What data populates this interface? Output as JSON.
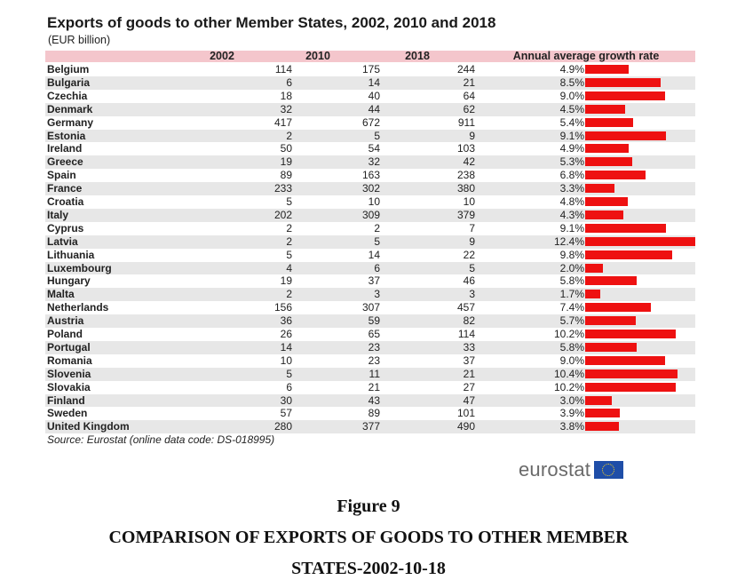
{
  "chart_data": {
    "type": "table",
    "title": "Exports of goods to other Member States, 2002, 2010 and 2018",
    "subtitle": "(EUR billion)",
    "columns": [
      "",
      "2002",
      "2010",
      "2018",
      "Annual average growth rate"
    ],
    "rows": [
      {
        "country": "Belgium",
        "v2002": 114,
        "v2010": 175,
        "v2018": 244,
        "growth_label": "4.9%",
        "growth": 4.9
      },
      {
        "country": "Bulgaria",
        "v2002": 6,
        "v2010": 14,
        "v2018": 21,
        "growth_label": "8.5%",
        "growth": 8.5
      },
      {
        "country": "Czechia",
        "v2002": 18,
        "v2010": 40,
        "v2018": 64,
        "growth_label": "9.0%",
        "growth": 9.0
      },
      {
        "country": "Denmark",
        "v2002": 32,
        "v2010": 44,
        "v2018": 62,
        "growth_label": "4.5%",
        "growth": 4.5
      },
      {
        "country": "Germany",
        "v2002": 417,
        "v2010": 672,
        "v2018": 911,
        "growth_label": "5.4%",
        "growth": 5.4
      },
      {
        "country": "Estonia",
        "v2002": 2,
        "v2010": 5,
        "v2018": 9,
        "growth_label": "9.1%",
        "growth": 9.1
      },
      {
        "country": "Ireland",
        "v2002": 50,
        "v2010": 54,
        "v2018": 103,
        "growth_label": "4.9%",
        "growth": 4.9
      },
      {
        "country": "Greece",
        "v2002": 19,
        "v2010": 32,
        "v2018": 42,
        "growth_label": "5.3%",
        "growth": 5.3
      },
      {
        "country": "Spain",
        "v2002": 89,
        "v2010": 163,
        "v2018": 238,
        "growth_label": "6.8%",
        "growth": 6.8
      },
      {
        "country": "France",
        "v2002": 233,
        "v2010": 302,
        "v2018": 380,
        "growth_label": "3.3%",
        "growth": 3.3
      },
      {
        "country": "Croatia",
        "v2002": 5,
        "v2010": 10,
        "v2018": 10,
        "growth_label": "4.8%",
        "growth": 4.8
      },
      {
        "country": "Italy",
        "v2002": 202,
        "v2010": 309,
        "v2018": 379,
        "growth_label": "4.3%",
        "growth": 4.3
      },
      {
        "country": "Cyprus",
        "v2002": 2,
        "v2010": 2,
        "v2018": 7,
        "growth_label": "9.1%",
        "growth": 9.1
      },
      {
        "country": "Latvia",
        "v2002": 2,
        "v2010": 5,
        "v2018": 9,
        "growth_label": "12.4%",
        "growth": 12.4
      },
      {
        "country": "Lithuania",
        "v2002": 5,
        "v2010": 14,
        "v2018": 22,
        "growth_label": "9.8%",
        "growth": 9.8
      },
      {
        "country": "Luxembourg",
        "v2002": 4,
        "v2010": 6,
        "v2018": 5,
        "growth_label": "2.0%",
        "growth": 2.0
      },
      {
        "country": "Hungary",
        "v2002": 19,
        "v2010": 37,
        "v2018": 46,
        "growth_label": "5.8%",
        "growth": 5.8
      },
      {
        "country": "Malta",
        "v2002": 2,
        "v2010": 3,
        "v2018": 3,
        "growth_label": "1.7%",
        "growth": 1.7
      },
      {
        "country": "Netherlands",
        "v2002": 156,
        "v2010": 307,
        "v2018": 457,
        "growth_label": "7.4%",
        "growth": 7.4
      },
      {
        "country": "Austria",
        "v2002": 36,
        "v2010": 59,
        "v2018": 82,
        "growth_label": "5.7%",
        "growth": 5.7
      },
      {
        "country": "Poland",
        "v2002": 26,
        "v2010": 65,
        "v2018": 114,
        "growth_label": "10.2%",
        "growth": 10.2
      },
      {
        "country": "Portugal",
        "v2002": 14,
        "v2010": 23,
        "v2018": 33,
        "growth_label": "5.8%",
        "growth": 5.8
      },
      {
        "country": "Romania",
        "v2002": 10,
        "v2010": 23,
        "v2018": 37,
        "growth_label": "9.0%",
        "growth": 9.0
      },
      {
        "country": "Slovenia",
        "v2002": 5,
        "v2010": 11,
        "v2018": 21,
        "growth_label": "10.4%",
        "growth": 10.4
      },
      {
        "country": "Slovakia",
        "v2002": 6,
        "v2010": 21,
        "v2018": 27,
        "growth_label": "10.2%",
        "growth": 10.2
      },
      {
        "country": "Finland",
        "v2002": 30,
        "v2010": 43,
        "v2018": 47,
        "growth_label": "3.0%",
        "growth": 3.0
      },
      {
        "country": "Sweden",
        "v2002": 57,
        "v2010": 89,
        "v2018": 101,
        "growth_label": "3.9%",
        "growth": 3.9
      },
      {
        "country": "United Kingdom",
        "v2002": 280,
        "v2010": 377,
        "v2018": 490,
        "growth_label": "3.8%",
        "growth": 3.8
      }
    ],
    "bar_color": "#ee1111",
    "growth_max": 12.4,
    "source": "Source: Eurostat (online data code: DS-018995)"
  },
  "logo": {
    "text": "eurostat",
    "flag_color": "#1f4ea8",
    "star_color": "#f7d021"
  },
  "caption": {
    "figure_number": "Figure 9",
    "line1": "COMPARISON OF EXPORTS OF GOODS TO OTHER MEMBER",
    "line2": "STATES-2002-10-18"
  }
}
